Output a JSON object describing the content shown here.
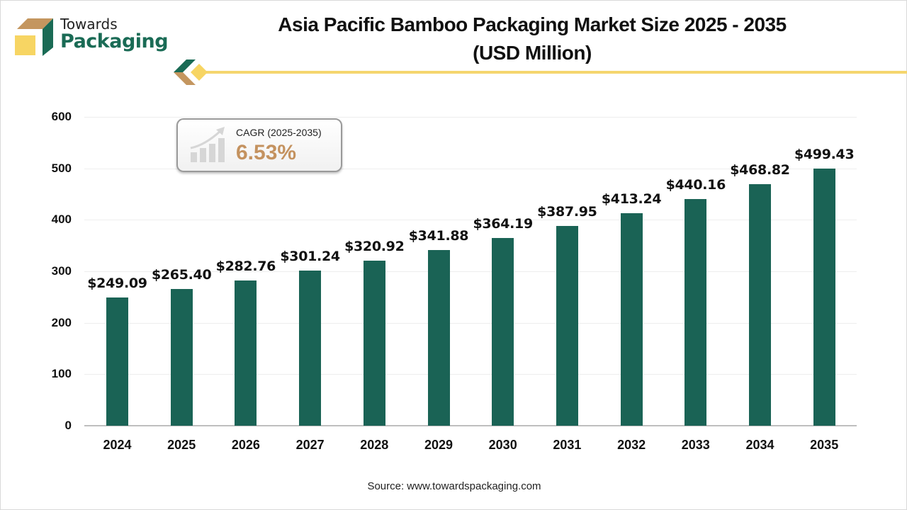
{
  "brand": {
    "line1": "Towards",
    "line2": "Packaging",
    "colors": {
      "green": "#1a6b55",
      "tan": "#c4925f",
      "yellow": "#f5d66e"
    }
  },
  "title": {
    "line1": "Asia Pacific Bamboo Packaging Market Size 2025 - 2035",
    "line2": "(USD Million)"
  },
  "cagr": {
    "label": "CAGR (2025-2035)",
    "value": "6.53%",
    "icon": "growth-chart-icon"
  },
  "source": "Source: www.towardspackaging.com",
  "chart_data": {
    "type": "bar",
    "title": "Asia Pacific Bamboo Packaging Market Size 2025 - 2035 (USD Million)",
    "xlabel": "",
    "ylabel": "",
    "categories": [
      "2024",
      "2025",
      "2026",
      "2027",
      "2028",
      "2029",
      "2030",
      "2031",
      "2032",
      "2033",
      "2034",
      "2035"
    ],
    "values": [
      249.09,
      265.4,
      282.76,
      301.24,
      320.92,
      341.88,
      364.19,
      387.95,
      413.24,
      440.16,
      468.82,
      499.43
    ],
    "value_labels": [
      "$249.09",
      "$265.40",
      "$282.76",
      "$301.24",
      "$320.92",
      "$341.88",
      "$364.19",
      "$387.95",
      "$413.24",
      "$440.16",
      "$468.82",
      "$499.43"
    ],
    "ylim": [
      0,
      600
    ],
    "yticks": [
      "0",
      "100",
      "200",
      "300",
      "400",
      "500",
      "600"
    ],
    "grid": true,
    "legend": "none",
    "bar_color": "#1a6355"
  }
}
